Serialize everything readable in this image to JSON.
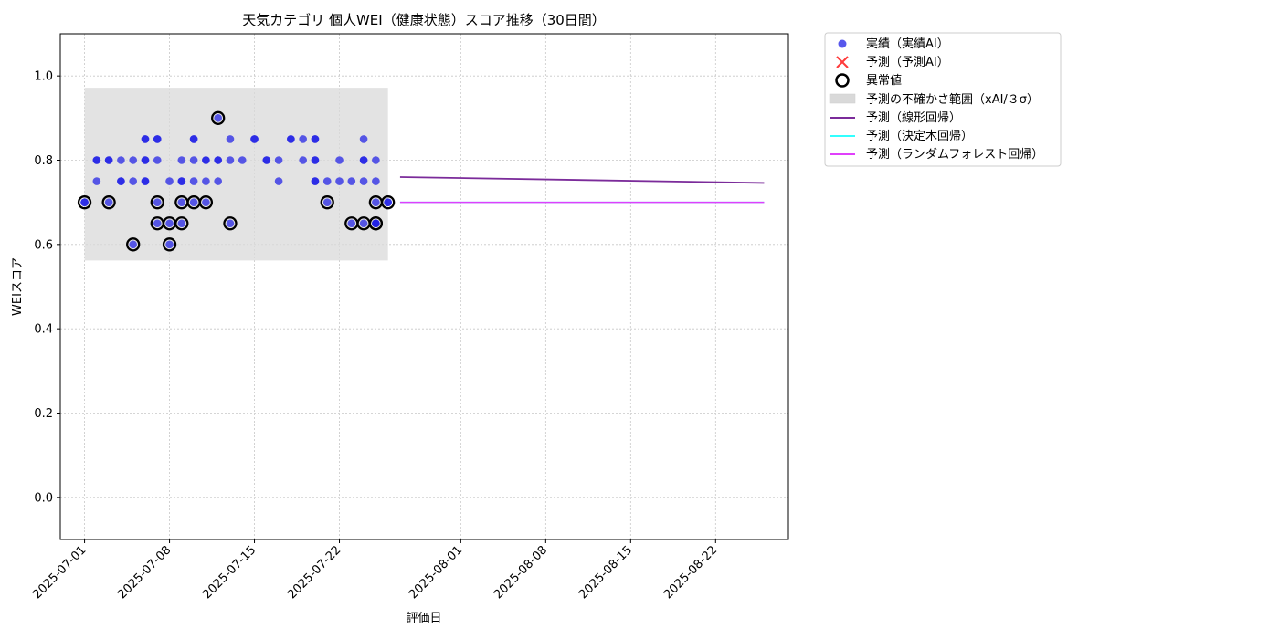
{
  "chart_data": {
    "type": "scatter",
    "title": "天気カテゴリ 個人WEI（健康状態）スコア推移（30日間）",
    "xlabel": "評価日",
    "ylabel": "WEIスコア",
    "xlim": [
      "2025-06-29",
      "2025-08-28"
    ],
    "ylim": [
      -0.1,
      1.1
    ],
    "yticks": [
      0.0,
      0.2,
      0.4,
      0.6,
      0.8,
      1.0
    ],
    "ytick_labels": [
      "0.0",
      "0.2",
      "0.4",
      "0.6",
      "0.8",
      "1.0"
    ],
    "xticks": [
      "2025-07-01",
      "2025-07-08",
      "2025-07-15",
      "2025-07-22",
      "2025-08-01",
      "2025-08-08",
      "2025-08-15",
      "2025-08-22"
    ],
    "grid": true,
    "legend_position": "outside-right",
    "colors": {
      "actual": "#1f1fe6",
      "predicted": "#ff3b3b",
      "anomaly": "#000000",
      "band": "#d9d9d9",
      "linear": "#7b2b9a",
      "tree": "#33ffff",
      "forest": "#e040fb"
    },
    "series": [
      {
        "name": "実績（実績AI）",
        "kind": "scatter",
        "points": [
          [
            "2025-07-01",
            0.7
          ],
          [
            "2025-07-01",
            0.7
          ],
          [
            "2025-07-02",
            0.8
          ],
          [
            "2025-07-02",
            0.8
          ],
          [
            "2025-07-02",
            0.75
          ],
          [
            "2025-07-03",
            0.8
          ],
          [
            "2025-07-03",
            0.8
          ],
          [
            "2025-07-03",
            0.7
          ],
          [
            "2025-07-04",
            0.8
          ],
          [
            "2025-07-04",
            0.75
          ],
          [
            "2025-07-04",
            0.75
          ],
          [
            "2025-07-05",
            0.75
          ],
          [
            "2025-07-05",
            0.8
          ],
          [
            "2025-07-05",
            0.6
          ],
          [
            "2025-07-06",
            0.75
          ],
          [
            "2025-07-06",
            0.8
          ],
          [
            "2025-07-06",
            0.75
          ],
          [
            "2025-07-06",
            0.8
          ],
          [
            "2025-07-06",
            0.85
          ],
          [
            "2025-07-06",
            0.85
          ],
          [
            "2025-07-07",
            0.85
          ],
          [
            "2025-07-07",
            0.85
          ],
          [
            "2025-07-07",
            0.8
          ],
          [
            "2025-07-07",
            0.7
          ],
          [
            "2025-07-07",
            0.65
          ],
          [
            "2025-07-08",
            0.6
          ],
          [
            "2025-07-08",
            0.65
          ],
          [
            "2025-07-08",
            0.75
          ],
          [
            "2025-07-09",
            0.75
          ],
          [
            "2025-07-09",
            0.8
          ],
          [
            "2025-07-09",
            0.65
          ],
          [
            "2025-07-09",
            0.7
          ],
          [
            "2025-07-09",
            0.75
          ],
          [
            "2025-07-10",
            0.7
          ],
          [
            "2025-07-10",
            0.75
          ],
          [
            "2025-07-10",
            0.8
          ],
          [
            "2025-07-10",
            0.85
          ],
          [
            "2025-07-10",
            0.85
          ],
          [
            "2025-07-11",
            0.75
          ],
          [
            "2025-07-11",
            0.7
          ],
          [
            "2025-07-11",
            0.8
          ],
          [
            "2025-07-11",
            0.8
          ],
          [
            "2025-07-12",
            0.8
          ],
          [
            "2025-07-12",
            0.9
          ],
          [
            "2025-07-12",
            0.8
          ],
          [
            "2025-07-12",
            0.75
          ],
          [
            "2025-07-13",
            0.8
          ],
          [
            "2025-07-13",
            0.85
          ],
          [
            "2025-07-13",
            0.65
          ],
          [
            "2025-07-14",
            0.8
          ],
          [
            "2025-07-15",
            0.85
          ],
          [
            "2025-07-15",
            0.85
          ],
          [
            "2025-07-16",
            0.8
          ],
          [
            "2025-07-16",
            0.8
          ],
          [
            "2025-07-17",
            0.8
          ],
          [
            "2025-07-17",
            0.75
          ],
          [
            "2025-07-18",
            0.85
          ],
          [
            "2025-07-18",
            0.85
          ],
          [
            "2025-07-19",
            0.8
          ],
          [
            "2025-07-19",
            0.85
          ],
          [
            "2025-07-20",
            0.85
          ],
          [
            "2025-07-20",
            0.8
          ],
          [
            "2025-07-20",
            0.75
          ],
          [
            "2025-07-20",
            0.75
          ],
          [
            "2025-07-20",
            0.85
          ],
          [
            "2025-07-20",
            0.8
          ],
          [
            "2025-07-21",
            0.75
          ],
          [
            "2025-07-21",
            0.7
          ],
          [
            "2025-07-22",
            0.8
          ],
          [
            "2025-07-22",
            0.75
          ],
          [
            "2025-07-23",
            0.75
          ],
          [
            "2025-07-23",
            0.65
          ],
          [
            "2025-07-24",
            0.85
          ],
          [
            "2025-07-24",
            0.8
          ],
          [
            "2025-07-24",
            0.75
          ],
          [
            "2025-07-24",
            0.8
          ],
          [
            "2025-07-24",
            0.65
          ],
          [
            "2025-07-25",
            0.75
          ],
          [
            "2025-07-25",
            0.65
          ],
          [
            "2025-07-25",
            0.65
          ],
          [
            "2025-07-25",
            0.8
          ],
          [
            "2025-07-25",
            0.7
          ],
          [
            "2025-07-25",
            0.65
          ],
          [
            "2025-07-26",
            0.7
          ],
          [
            "2025-07-26",
            0.7
          ]
        ]
      },
      {
        "name": "予測（予測AI）",
        "kind": "scatter-x",
        "points": []
      },
      {
        "name": "異常値",
        "kind": "ring",
        "points": [
          [
            "2025-07-01",
            0.7
          ],
          [
            "2025-07-03",
            0.7
          ],
          [
            "2025-07-05",
            0.6
          ],
          [
            "2025-07-07",
            0.7
          ],
          [
            "2025-07-07",
            0.65
          ],
          [
            "2025-07-08",
            0.6
          ],
          [
            "2025-07-08",
            0.65
          ],
          [
            "2025-07-09",
            0.65
          ],
          [
            "2025-07-09",
            0.7
          ],
          [
            "2025-07-10",
            0.7
          ],
          [
            "2025-07-11",
            0.7
          ],
          [
            "2025-07-12",
            0.9
          ],
          [
            "2025-07-13",
            0.65
          ],
          [
            "2025-07-21",
            0.7
          ],
          [
            "2025-07-23",
            0.65
          ],
          [
            "2025-07-24",
            0.65
          ],
          [
            "2025-07-25",
            0.65
          ],
          [
            "2025-07-25",
            0.65
          ],
          [
            "2025-07-25",
            0.7
          ],
          [
            "2025-07-26",
            0.7
          ]
        ]
      },
      {
        "name": "予測の不確かさ範囲（xAI/３σ）",
        "kind": "band",
        "x": [
          "2025-07-01",
          "2025-07-26"
        ],
        "y": [
          0.562,
          0.972
        ]
      },
      {
        "name": "予測（線形回帰）",
        "kind": "line",
        "points": [
          [
            "2025-07-27",
            0.76
          ],
          [
            "2025-08-26",
            0.746
          ]
        ]
      },
      {
        "name": "予測（決定木回帰）",
        "kind": "line",
        "points": [
          [
            "2025-07-27",
            0.7
          ],
          [
            "2025-08-26",
            0.7
          ]
        ]
      },
      {
        "name": "予測（ランダムフォレスト回帰）",
        "kind": "line",
        "points": [
          [
            "2025-07-27",
            0.7
          ],
          [
            "2025-08-26",
            0.7
          ]
        ]
      }
    ]
  }
}
